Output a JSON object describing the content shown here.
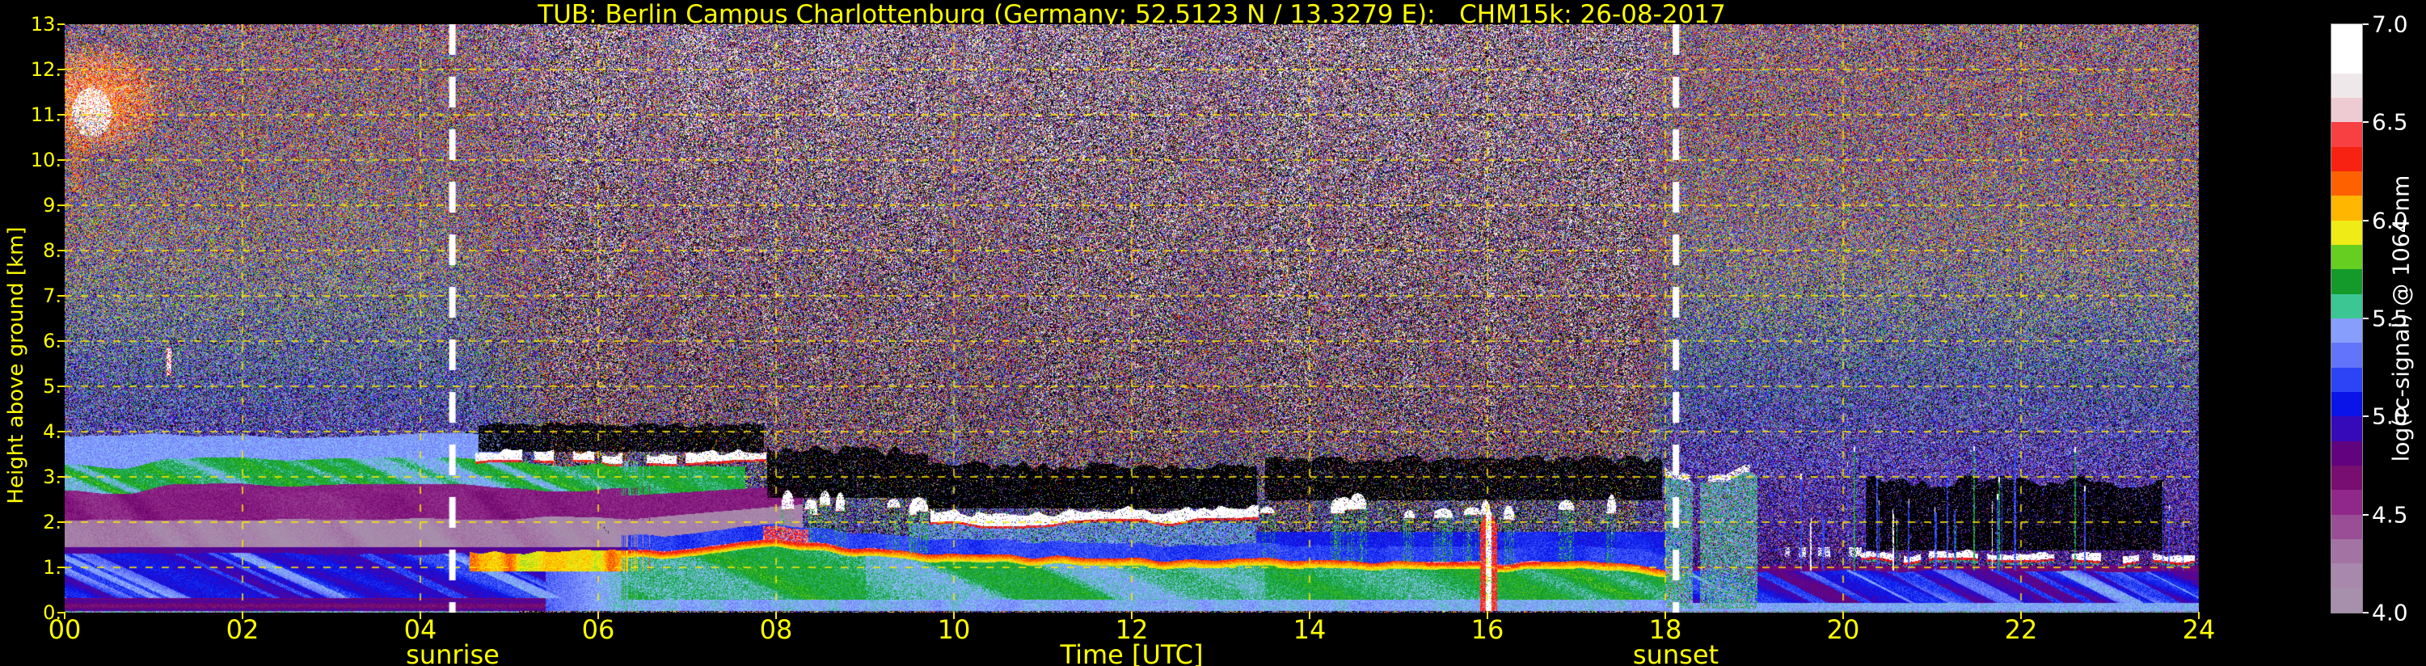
{
  "header": {
    "title": "TUB: Berlin Campus Charlottenburg (Germany; 52.5123 N / 13.3279 E):   CHM15k: 26-08-2017"
  },
  "chart_data": {
    "type": "heatmap",
    "title": "TUB: Berlin Campus Charlottenburg (Germany; 52.5123 N / 13.3279 E):   CHM15k: 26-08-2017",
    "xlabel": "Time [UTC]",
    "ylabel": "Height above ground [km]",
    "xlim": [
      0,
      24
    ],
    "ylim": [
      0,
      13
    ],
    "xticks": {
      "values": [
        0,
        2,
        4,
        6,
        8,
        10,
        12,
        14,
        16,
        18,
        20,
        22,
        24
      ],
      "labels": [
        "00",
        "02",
        "04",
        "06",
        "08",
        "10",
        "12",
        "14",
        "16",
        "18",
        "20",
        "22",
        "24"
      ]
    },
    "yticks": {
      "values": [
        0,
        1,
        2,
        3,
        4,
        5,
        6,
        7,
        8,
        9,
        10,
        11,
        12,
        13
      ],
      "labels": [
        "0.",
        "1.",
        "2.",
        "3.",
        "4.",
        "5.",
        "6.",
        "7.",
        "8.",
        "9.",
        "10.",
        "11.",
        "12.",
        "13."
      ]
    },
    "grid": {
      "show": true,
      "color": "#ffe800",
      "x_step_hours": 2,
      "y_step_km": 1
    },
    "sun": {
      "sunrise_utc": 4.36,
      "sunrise_label": "sunrise",
      "sunset_utc": 18.12,
      "sunset_label": "sunset",
      "line_color": "#ffffff"
    },
    "colorbar": {
      "label": "log(rc-signal) @ 1064 nm",
      "min": 4.0,
      "max": 7.0,
      "segments": 24,
      "tick_values": [
        4.0,
        4.5,
        5.0,
        5.5,
        6.0,
        6.5,
        7.0
      ],
      "tick_labels": [
        "4.0",
        "4.5",
        "5.0",
        "5.5",
        "6.0",
        "6.5",
        "7.0"
      ],
      "under_color": "#000000",
      "stops": [
        [
          4.0,
          "#a794ab"
        ],
        [
          4.18,
          "#a889ad"
        ],
        [
          4.32,
          "#a272a2"
        ],
        [
          4.45,
          "#984a94"
        ],
        [
          4.58,
          "#8f2388"
        ],
        [
          4.7,
          "#750c6d"
        ],
        [
          4.8,
          "#640177"
        ],
        [
          4.88,
          "#5006a8"
        ],
        [
          4.96,
          "#2c0ac0"
        ],
        [
          5.04,
          "#0c0ce4"
        ],
        [
          5.12,
          "#0a28f2"
        ],
        [
          5.22,
          "#3c52f6"
        ],
        [
          5.32,
          "#6577f9"
        ],
        [
          5.42,
          "#8795fb"
        ],
        [
          5.52,
          "#8ec9fe"
        ],
        [
          5.56,
          "#3dc795"
        ],
        [
          5.62,
          "#28a565"
        ],
        [
          5.68,
          "#14982f"
        ],
        [
          5.74,
          "#0ca40c"
        ],
        [
          5.8,
          "#55c81e"
        ],
        [
          5.86,
          "#a2e428"
        ],
        [
          5.92,
          "#e6ef22"
        ],
        [
          5.97,
          "#ffe400"
        ],
        [
          6.04,
          "#fec300"
        ],
        [
          6.11,
          "#fe9c00"
        ],
        [
          6.19,
          "#fe6000"
        ],
        [
          6.28,
          "#f52d16"
        ],
        [
          6.4,
          "#fb0404"
        ],
        [
          6.52,
          "#f0c2c9"
        ],
        [
          6.65,
          "#e9dfe3"
        ],
        [
          6.78,
          "#ffffff"
        ],
        [
          7.0,
          "#ffffff"
        ]
      ]
    },
    "colors": {
      "text": "#ffff00",
      "axis_tick": "#ffe800",
      "cbar_text": "#ffffff",
      "background": "#000000"
    },
    "features": {
      "noise": {
        "night": {
          "base": [
            4.5,
            0.75
          ],
          "lo": [
            1.25,
            0.3
          ],
          "hi": [
            0.55,
            0.8
          ]
        },
        "day": {
          "base": [
            4.62,
            0.5
          ],
          "lo": [
            1.5,
            0.3
          ],
          "hi": [
            1.6,
            0.95
          ]
        },
        "banding": 0.22,
        "bright_speck_p": 0.004,
        "day_ramp": [
          4.31,
          6.1
        ],
        "dusk_ramp": [
          17.67,
          18.16
        ]
      },
      "boundary_layer_top_km": [
        [
          0,
          1.3
        ],
        [
          4.5,
          1.3
        ],
        [
          6.5,
          1.36
        ],
        [
          8,
          1.6
        ],
        [
          9,
          1.44
        ],
        [
          10,
          1.28
        ],
        [
          12,
          1.18
        ],
        [
          14,
          1.17
        ],
        [
          16,
          1.12
        ],
        [
          17.5,
          1.1
        ],
        [
          18.4,
          0.92
        ],
        [
          20,
          0.83
        ],
        [
          22,
          0.83
        ],
        [
          24,
          0.88
        ]
      ],
      "residual_layers": [
        {
          "name": "surface-blue",
          "h0": 0.07,
          "h1": 0.33,
          "value": 4.78
        },
        {
          "name": "mixed-blue",
          "h0": 0.33,
          "h1": 1.28,
          "value": 5.05
        },
        {
          "name": "mauve-band",
          "h0": 1.45,
          "h1": 2.02,
          "value": 4.2
        },
        {
          "name": "dark-magenta-band",
          "h0": 2.02,
          "h1": 2.6,
          "value": 4.62
        },
        {
          "name": "elevated-green-aerosol",
          "h0": 2.6,
          "h1": 3.18,
          "value": 5.6
        },
        {
          "name": "light-blue-band",
          "h0": 3.18,
          "h1": 3.86,
          "value": 5.42
        }
      ],
      "elevated_green_layer": {
        "base": 2.56,
        "amp": 0.32,
        "thickness": 0.58,
        "t_end": 7.65,
        "value": 5.6
      },
      "cloud_decks": [
        {
          "name": "morning-stratocu",
          "t0": 4.62,
          "t1": 7.88,
          "base": 3.33,
          "thickness": 0.24,
          "red_fringe": true,
          "gap": 0.26
        },
        {
          "name": "midday-deck",
          "t0": 9.68,
          "t1": 13.42,
          "base": 2.02,
          "thickness": 0.3,
          "red_fringe": true,
          "gap": 0.13
        },
        {
          "name": "evening-low-deck",
          "t0": 20.2,
          "t1": 24.0,
          "base": 1.16,
          "thickness": 0.17,
          "red_fringe": true,
          "gap": 0.2
        }
      ],
      "cumulus_fields": [
        {
          "t0": 7.9,
          "t1": 9.7,
          "base": 2.3,
          "count": 8
        },
        {
          "t0": 13.5,
          "t1": 17.95,
          "base": 2.2,
          "count": 11
        }
      ],
      "attenuation_zones": [
        {
          "t0": 4.65,
          "t1": 7.85,
          "h0": 3.57,
          "h1": 4.15,
          "density": 0.78
        },
        {
          "t0": 7.9,
          "t1": 9.7,
          "h0": 2.55,
          "h1": 3.6,
          "density": 0.82
        },
        {
          "t0": 9.7,
          "t1": 13.4,
          "h0": 2.32,
          "h1": 3.25,
          "density": 0.85
        },
        {
          "t0": 13.5,
          "t1": 17.95,
          "h0": 2.5,
          "h1": 3.4,
          "density": 0.78
        },
        {
          "t0": 20.25,
          "t1": 23.6,
          "h0": 1.4,
          "h1": 2.9,
          "density": 0.82
        }
      ],
      "cirrus": {
        "t0": 0.0,
        "t1": 1.55,
        "h0": 9.9,
        "h1": 12.9,
        "core_t": 0.3,
        "core_h": 11.05
      },
      "small_cloud": {
        "t": 1.17,
        "h0": 5.25,
        "h1": 5.85
      },
      "faint_cirrus_patches": [
        {
          "t0": 6.95,
          "t1": 7.35,
          "h0": 10.6,
          "h1": 12.9,
          "p": 0.1
        },
        {
          "t0": 7.55,
          "t1": 7.8,
          "h0": 11.0,
          "h1": 12.2,
          "p": 0.06
        },
        {
          "t0": 8.45,
          "t1": 9.0,
          "h0": 10.9,
          "h1": 12.6,
          "p": 0.08
        },
        {
          "t0": 10.1,
          "t1": 10.4,
          "h0": 11.5,
          "h1": 12.8,
          "p": 0.06
        },
        {
          "t0": 13.95,
          "t1": 14.3,
          "h0": 11.2,
          "h1": 12.7,
          "p": 0.07
        }
      ],
      "precip_shaft": {
        "t0": 15.92,
        "t1": 16.1,
        "h_top": 2.32
      },
      "green_columns": {
        "t0": 18.0,
        "t1": 19.15,
        "h_top": 3.4
      },
      "vertical_streaks": {
        "t0": 19.25,
        "t1": 23.85,
        "count": 26,
        "h_top_min": 1.7,
        "h_top_max": 3.6
      },
      "red_wisps": [
        {
          "t0": 22.68,
          "t1": 23.05,
          "h0": 6.8,
          "h1": 8.15
        },
        {
          "t0": 23.55,
          "t1": 23.85,
          "h0": 5.3,
          "h1": 7.2
        }
      ],
      "morning_red_blob": {
        "t0": 7.85,
        "t1": 8.35
      }
    }
  }
}
